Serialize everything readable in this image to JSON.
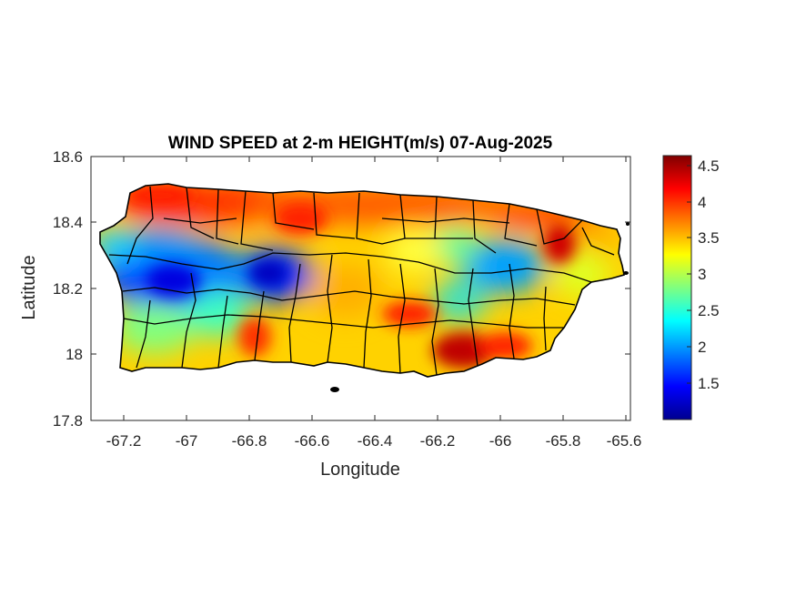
{
  "map": {
    "title": "WIND SPEED at 2-m HEIGHT(m/s) 07-Aug-2025",
    "xlabel": "Longitude",
    "ylabel": "Latitude",
    "x_ticks": [
      "-67.2",
      "-67",
      "-66.8",
      "-66.6",
      "-66.4",
      "-66.2",
      "-66",
      "-65.8",
      "-65.6"
    ],
    "y_ticks": [
      "18.6",
      "18.4",
      "18.2",
      "18",
      "17.8"
    ],
    "xlim": [
      -67.3,
      -65.58
    ],
    "ylim": [
      17.8,
      18.6
    ],
    "colorbar": {
      "colormap": "jet",
      "range": [
        1.05,
        4.62
      ],
      "ticks": [
        "4.5",
        "4",
        "3.5",
        "3",
        "2.5",
        "2",
        "1.5"
      ]
    }
  }
}
